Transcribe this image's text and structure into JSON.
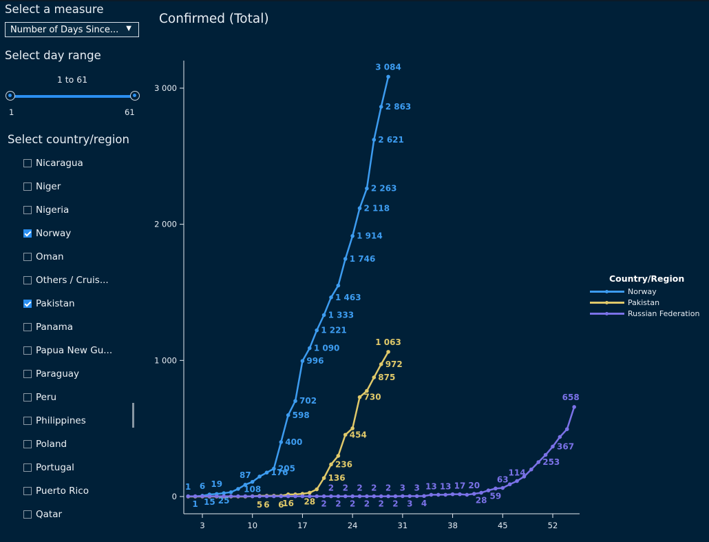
{
  "sidebar": {
    "measure_heading": "Select a measure",
    "measure_value": "Number of Days Since...",
    "range_heading": "Select day range",
    "range_label": "1 to 61",
    "range_min": "1",
    "range_max": "61",
    "range_selected": [
      1,
      61
    ],
    "country_heading": "Select country/region",
    "countries": [
      {
        "label": "Nicaragua",
        "checked": false
      },
      {
        "label": "Niger",
        "checked": false
      },
      {
        "label": "Nigeria",
        "checked": false
      },
      {
        "label": "Norway",
        "checked": true
      },
      {
        "label": "Oman",
        "checked": false
      },
      {
        "label": "Others / Cruis...",
        "checked": false
      },
      {
        "label": "Pakistan",
        "checked": true
      },
      {
        "label": "Panama",
        "checked": false
      },
      {
        "label": "Papua New Gu...",
        "checked": false
      },
      {
        "label": "Paraguay",
        "checked": false
      },
      {
        "label": "Peru",
        "checked": false
      },
      {
        "label": "Philippines",
        "checked": false
      },
      {
        "label": "Poland",
        "checked": false
      },
      {
        "label": "Portugal",
        "checked": false
      },
      {
        "label": "Puerto Rico",
        "checked": false
      },
      {
        "label": "Qatar",
        "checked": false
      }
    ]
  },
  "legend": {
    "title": "Country/Region"
  },
  "chart_data": {
    "type": "line",
    "title": "Confirmed (Total)",
    "xlabel": "",
    "ylabel": "",
    "xlim": [
      1,
      56
    ],
    "ylim": [
      0,
      3200
    ],
    "xticks": [
      3,
      10,
      17,
      24,
      31,
      38,
      45,
      52
    ],
    "yticks": [
      0,
      1000,
      2000,
      3000
    ],
    "ytick_labels": [
      "0",
      "1 000",
      "2 000",
      "3 000"
    ],
    "grid": false,
    "legend_position": "right",
    "series": [
      {
        "name": "Norway",
        "color": "#3d9cf0",
        "start_day": 1,
        "values": [
          1,
          1,
          6,
          15,
          19,
          25,
          32,
          56,
          87,
          108,
          147,
          176,
          205,
          400,
          598,
          702,
          996,
          1090,
          1221,
          1333,
          1463,
          1550,
          1746,
          1914,
          2118,
          2263,
          2621,
          2863,
          3084
        ],
        "labels": {
          "1": "1",
          "2": "1",
          "3": "6",
          "4": "15",
          "5": "19",
          "6": "25",
          "9": "87",
          "10": "108",
          "12": "176",
          "13": "205",
          "14": "400",
          "15": "598",
          "16": "702",
          "17": "996",
          "18": "1 090",
          "19": "1 221",
          "20": "1 333",
          "21": "1 463",
          "23": "1 746",
          "24": "1 914",
          "25": "2 118",
          "26": "2 263",
          "27": "2 621",
          "28": "2 863",
          "29": "3 084"
        }
      },
      {
        "name": "Pakistan",
        "color": "#e0c96a",
        "start_day": 1,
        "values": [
          0,
          0,
          0,
          0,
          0,
          0,
          0,
          0,
          0,
          2,
          5,
          6,
          6,
          6,
          16,
          16,
          20,
          28,
          53,
          136,
          236,
          299,
          454,
          501,
          730,
          776,
          875,
          972,
          1063
        ],
        "labels": {
          "11": "5",
          "12": "6",
          "14": "6",
          "15": "16",
          "18": "28",
          "20": "136",
          "21": "236",
          "23": "454",
          "25": "730",
          "27": "875",
          "28": "972",
          "29": "1 063"
        }
      },
      {
        "name": "Russian Federation",
        "color": "#7b72e8",
        "start_day": 1,
        "values": [
          2,
          2,
          2,
          2,
          2,
          2,
          2,
          2,
          2,
          2,
          2,
          2,
          2,
          2,
          2,
          2,
          2,
          2,
          2,
          2,
          2,
          2,
          2,
          2,
          2,
          2,
          2,
          2,
          2,
          2,
          3,
          3,
          3,
          4,
          13,
          13,
          13,
          17,
          17,
          13,
          20,
          28,
          45,
          59,
          63,
          90,
          114,
          147,
          199,
          253,
          306,
          367,
          438,
          495,
          658
        ],
        "labels": {
          "20": "2",
          "21": "2",
          "22": "2",
          "23": "2",
          "24": "2",
          "25": "2",
          "26": "2",
          "27": "2",
          "28": "2",
          "29": "2",
          "30": "2",
          "31": "3",
          "32": "3",
          "33": "3",
          "34": "4",
          "35": "13",
          "37": "13",
          "39": "17",
          "41": "20",
          "42": "28",
          "44": "59",
          "45": "63",
          "47": "114",
          "50": "253",
          "52": "367",
          "55": "658"
        }
      }
    ]
  }
}
